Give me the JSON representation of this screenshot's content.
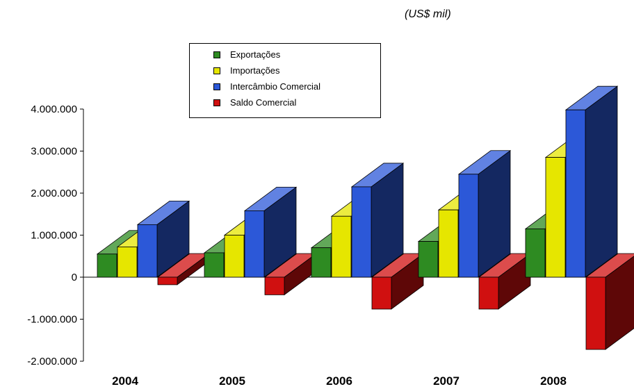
{
  "unit_label": "(US$ mil)",
  "chart_data": {
    "type": "bar",
    "style": "3d-clustered-column",
    "categories": [
      "2004",
      "2005",
      "2006",
      "2007",
      "2008"
    ],
    "series": [
      {
        "name": "Exportações",
        "color": "#2e8b22",
        "values": [
          550000,
          580000,
          700000,
          850000,
          1150000
        ]
      },
      {
        "name": "Importações",
        "color": "#e6e600",
        "values": [
          720000,
          1000000,
          1450000,
          1600000,
          2850000
        ]
      },
      {
        "name": "Intercâmbio Comercial",
        "color": "#2c58d8",
        "values": [
          1250000,
          1580000,
          2150000,
          2450000,
          3980000
        ]
      },
      {
        "name": "Saldo Comercial",
        "color": "#d01010",
        "values": [
          -180000,
          -420000,
          -760000,
          -760000,
          -1720000
        ]
      }
    ],
    "ylim": [
      -2000000,
      4000000
    ],
    "yticks": [
      "-2.000.000",
      "-1.000.000",
      "0",
      "1.000.000",
      "2.000.000",
      "3.000.000",
      "4.000.000"
    ],
    "ytick_values": [
      -2000000,
      -1000000,
      0,
      1000000,
      2000000,
      3000000,
      4000000
    ],
    "legend_position": "top-center",
    "grid": false
  }
}
